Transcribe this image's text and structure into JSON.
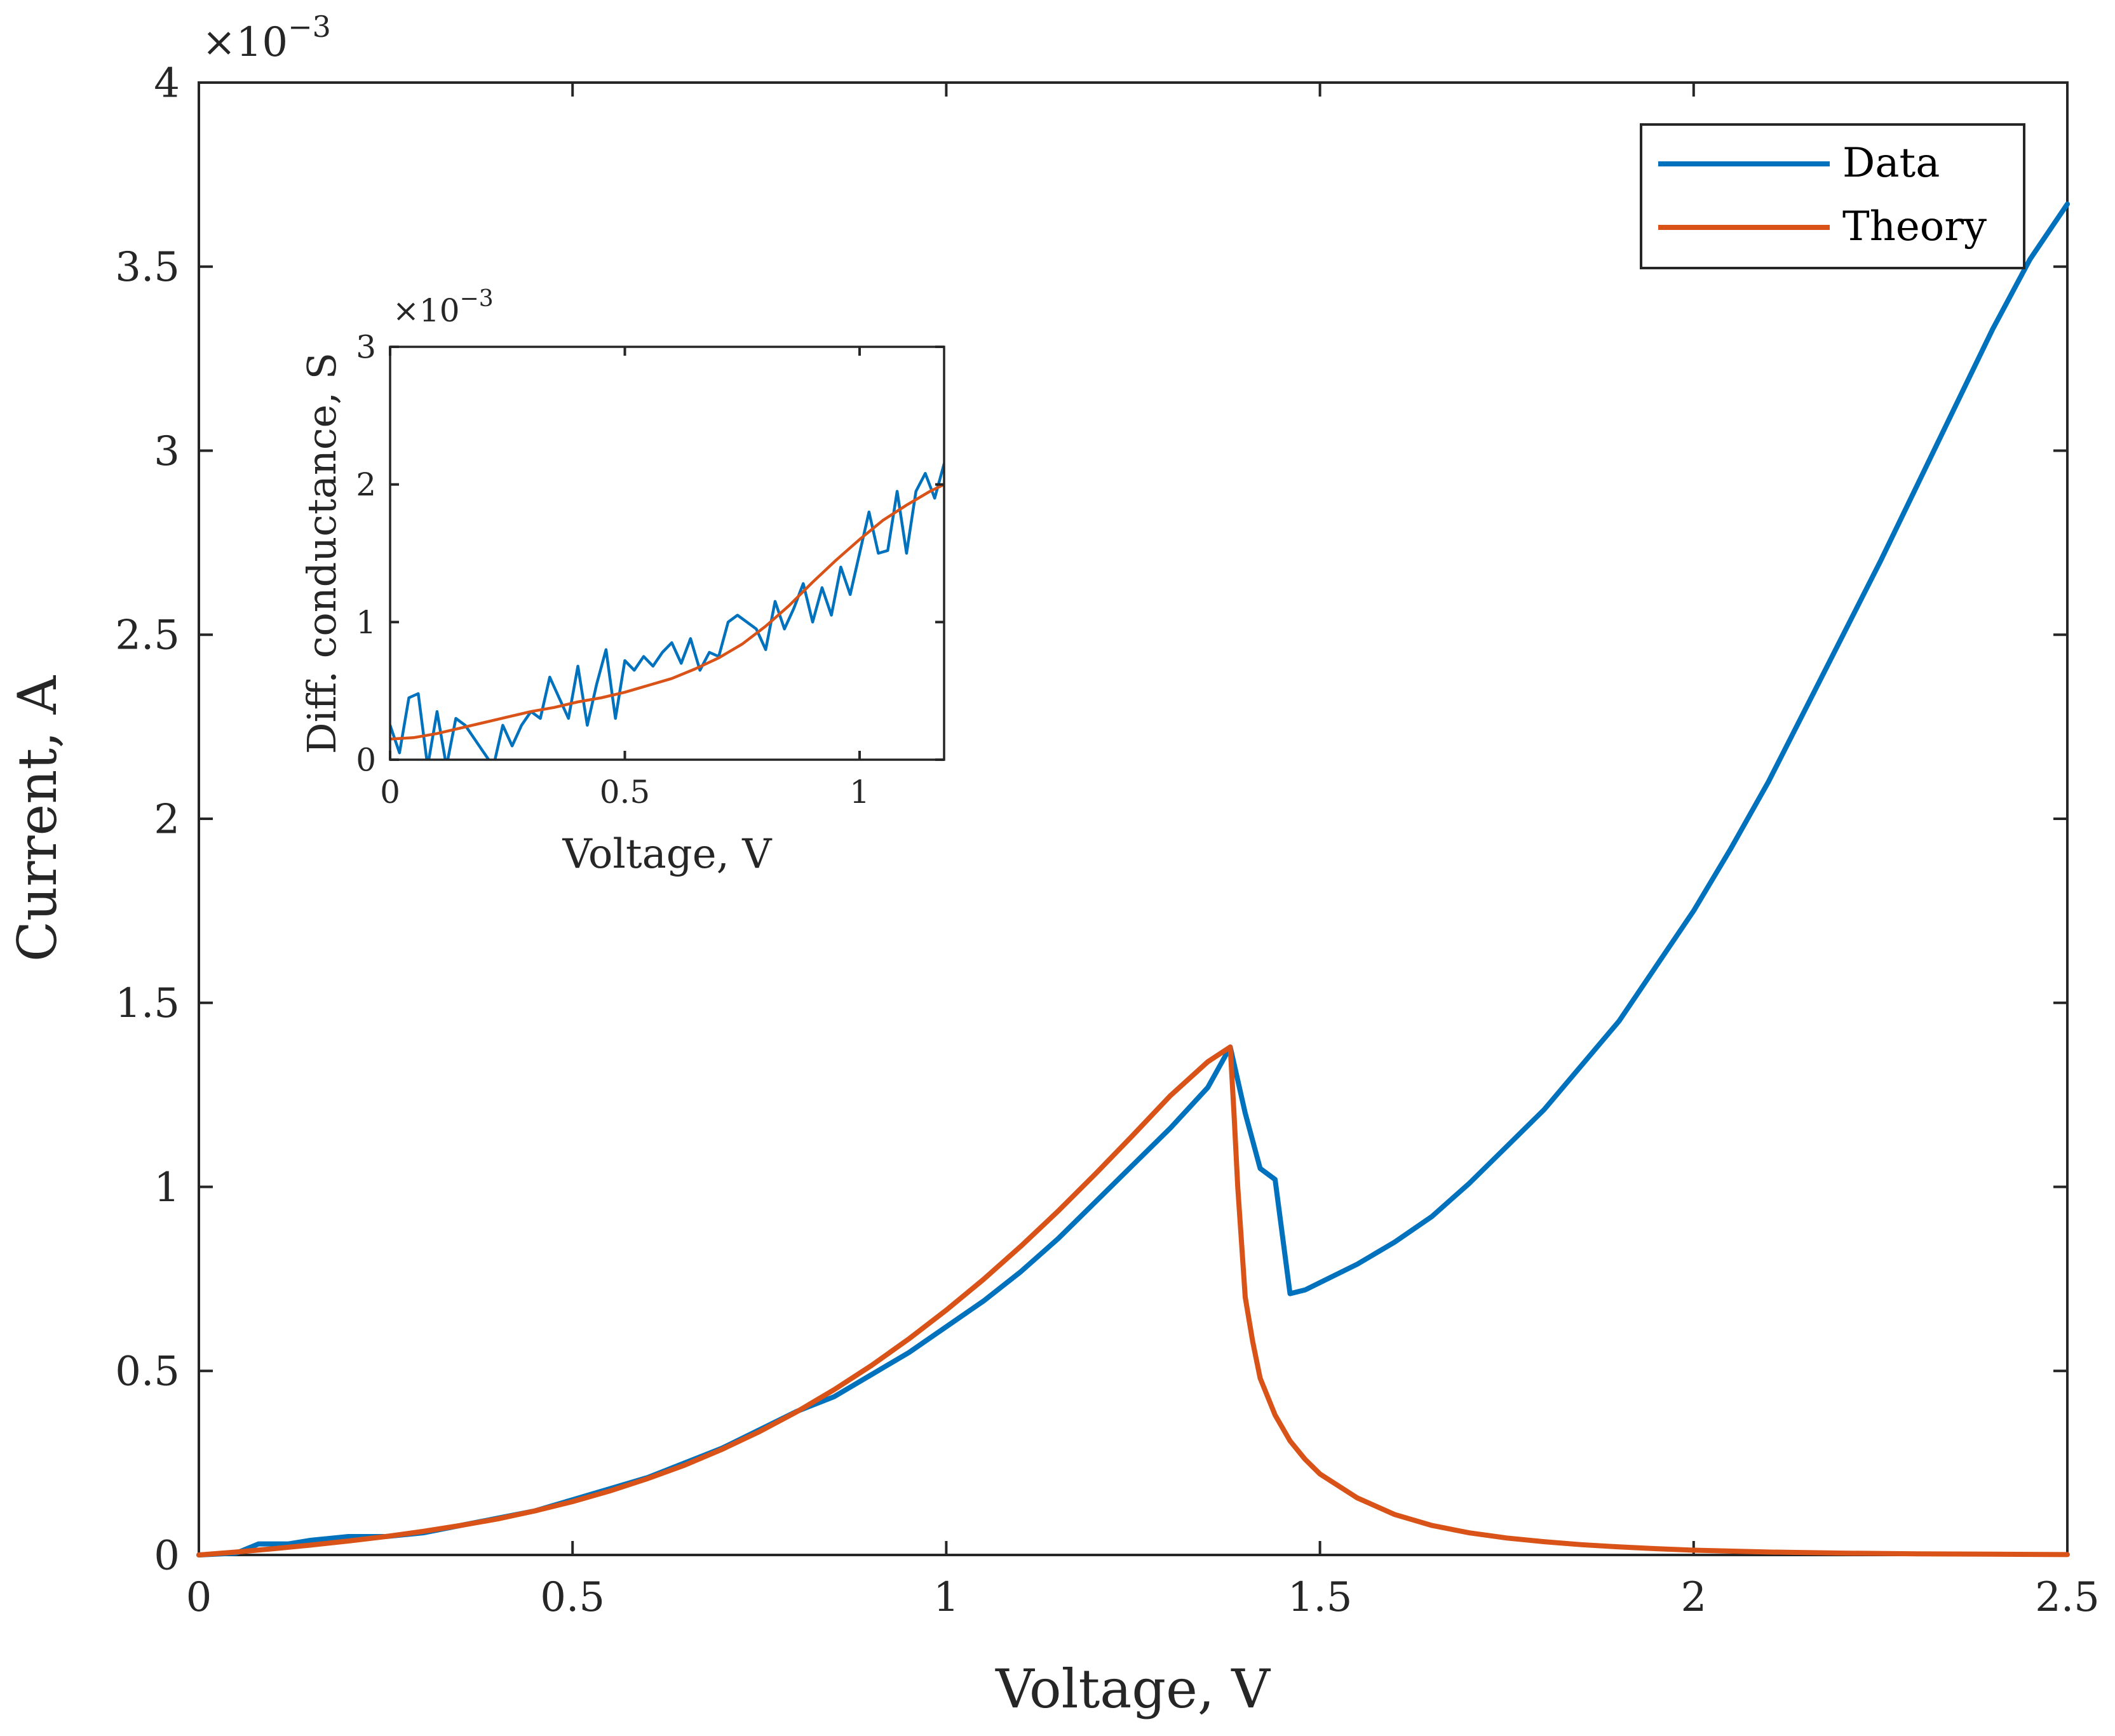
{
  "chart_data": [
    {
      "id": "main",
      "type": "line",
      "title": "",
      "xlabel": "Voltage, V",
      "ylabel": "Current, A",
      "xlim": [
        0,
        2.5
      ],
      "ylim": [
        0,
        4
      ],
      "y_multiplier_label": "×10",
      "y_multiplier_exponent": "−3",
      "xticks": [
        0,
        0.5,
        1,
        1.5,
        2,
        2.5
      ],
      "xtick_labels": [
        "0",
        "0.5",
        "1",
        "1.5",
        "2",
        "2.5"
      ],
      "yticks": [
        0,
        0.5,
        1,
        1.5,
        2,
        2.5,
        3,
        3.5,
        4
      ],
      "ytick_labels": [
        "0",
        "0.5",
        "1",
        "1.5",
        "2",
        "2.5",
        "3",
        "3.5",
        "4"
      ],
      "grid": false,
      "legend_position": "top-right",
      "series": [
        {
          "name": "Data",
          "color": "#0072BD",
          "x": [
            0,
            0.05,
            0.08,
            0.12,
            0.15,
            0.2,
            0.25,
            0.3,
            0.35,
            0.4,
            0.45,
            0.5,
            0.55,
            0.6,
            0.65,
            0.7,
            0.75,
            0.8,
            0.85,
            0.9,
            0.95,
            1.0,
            1.05,
            1.1,
            1.15,
            1.2,
            1.25,
            1.3,
            1.35,
            1.38,
            1.4,
            1.42,
            1.44,
            1.46,
            1.48,
            1.5,
            1.55,
            1.6,
            1.65,
            1.7,
            1.75,
            1.8,
            1.85,
            1.9,
            1.95,
            2.0,
            2.05,
            2.1,
            2.15,
            2.2,
            2.25,
            2.3,
            2.35,
            2.4,
            2.45,
            2.5
          ],
          "y": [
            0,
            0.005,
            0.03,
            0.03,
            0.04,
            0.05,
            0.05,
            0.06,
            0.08,
            0.1,
            0.12,
            0.15,
            0.18,
            0.21,
            0.25,
            0.29,
            0.34,
            0.39,
            0.43,
            0.49,
            0.55,
            0.62,
            0.69,
            0.77,
            0.86,
            0.96,
            1.06,
            1.16,
            1.27,
            1.38,
            1.2,
            1.05,
            1.02,
            0.71,
            0.72,
            0.74,
            0.79,
            0.85,
            0.92,
            1.01,
            1.11,
            1.21,
            1.33,
            1.45,
            1.6,
            1.75,
            1.92,
            2.1,
            2.3,
            2.5,
            2.7,
            2.91,
            3.12,
            3.33,
            3.52,
            3.67
          ]
        },
        {
          "name": "Theory",
          "color": "#D95319",
          "x": [
            0,
            0.05,
            0.1,
            0.15,
            0.2,
            0.25,
            0.3,
            0.35,
            0.4,
            0.45,
            0.5,
            0.55,
            0.6,
            0.65,
            0.7,
            0.75,
            0.8,
            0.85,
            0.9,
            0.95,
            1.0,
            1.05,
            1.1,
            1.15,
            1.2,
            1.25,
            1.3,
            1.35,
            1.38,
            1.385,
            1.39,
            1.4,
            1.41,
            1.42,
            1.44,
            1.46,
            1.48,
            1.5,
            1.55,
            1.6,
            1.65,
            1.7,
            1.75,
            1.8,
            1.85,
            1.9,
            1.95,
            2.0,
            2.1,
            2.2,
            2.3,
            2.4,
            2.5
          ],
          "y": [
            0,
            0.008,
            0.017,
            0.027,
            0.038,
            0.05,
            0.064,
            0.08,
            0.098,
            0.12,
            0.145,
            0.174,
            0.207,
            0.244,
            0.287,
            0.335,
            0.389,
            0.449,
            0.515,
            0.587,
            0.665,
            0.749,
            0.839,
            0.935,
            1.036,
            1.141,
            1.248,
            1.34,
            1.38,
            1.2,
            1.0,
            0.7,
            0.58,
            0.48,
            0.38,
            0.31,
            0.26,
            0.22,
            0.155,
            0.11,
            0.08,
            0.06,
            0.046,
            0.036,
            0.028,
            0.022,
            0.017,
            0.013,
            0.008,
            0.005,
            0.003,
            0.002,
            0.001
          ]
        }
      ]
    },
    {
      "id": "inset",
      "type": "line",
      "title": "",
      "xlabel": "Voltage, V",
      "ylabel": "Diff. conductance, S",
      "xlim": [
        0,
        1.18
      ],
      "ylim": [
        0,
        3
      ],
      "y_multiplier_label": "×10",
      "y_multiplier_exponent": "−3",
      "xticks": [
        0,
        0.5,
        1
      ],
      "xtick_labels": [
        "0",
        "0.5",
        "1"
      ],
      "yticks": [
        0,
        1,
        2,
        3
      ],
      "ytick_labels": [
        "0",
        "1",
        "2",
        "3"
      ],
      "grid": false,
      "series": [
        {
          "name": "Data",
          "color": "#0072BD",
          "x": [
            0,
            0.02,
            0.04,
            0.06,
            0.08,
            0.1,
            0.12,
            0.14,
            0.16,
            0.18,
            0.2,
            0.22,
            0.24,
            0.26,
            0.28,
            0.3,
            0.32,
            0.34,
            0.36,
            0.38,
            0.4,
            0.42,
            0.44,
            0.46,
            0.48,
            0.5,
            0.52,
            0.54,
            0.56,
            0.58,
            0.6,
            0.62,
            0.64,
            0.66,
            0.68,
            0.7,
            0.72,
            0.74,
            0.76,
            0.78,
            0.8,
            0.82,
            0.84,
            0.86,
            0.88,
            0.9,
            0.92,
            0.94,
            0.96,
            0.98,
            1.0,
            1.02,
            1.04,
            1.06,
            1.08,
            1.1,
            1.12,
            1.14,
            1.16,
            1.18
          ],
          "y": [
            0.25,
            0.05,
            0.45,
            0.48,
            -0.05,
            0.35,
            -0.05,
            0.3,
            0.25,
            0.15,
            0.05,
            -0.05,
            0.25,
            0.1,
            0.25,
            0.35,
            0.3,
            0.6,
            0.45,
            0.3,
            0.68,
            0.25,
            0.55,
            0.8,
            0.3,
            0.72,
            0.65,
            0.75,
            0.68,
            0.78,
            0.85,
            0.7,
            0.88,
            0.65,
            0.78,
            0.75,
            1.0,
            1.05,
            1.0,
            0.95,
            0.8,
            1.15,
            0.95,
            1.1,
            1.28,
            1.0,
            1.25,
            1.05,
            1.4,
            1.2,
            1.5,
            1.8,
            1.5,
            1.52,
            1.95,
            1.5,
            1.95,
            2.08,
            1.9,
            2.15
          ]
        },
        {
          "name": "Theory",
          "color": "#D95319",
          "x": [
            0,
            0.05,
            0.1,
            0.15,
            0.2,
            0.25,
            0.3,
            0.35,
            0.4,
            0.45,
            0.5,
            0.55,
            0.6,
            0.65,
            0.7,
            0.75,
            0.8,
            0.85,
            0.9,
            0.95,
            1.0,
            1.05,
            1.1,
            1.15,
            1.18
          ],
          "y": [
            0.15,
            0.16,
            0.19,
            0.23,
            0.27,
            0.31,
            0.35,
            0.38,
            0.42,
            0.45,
            0.49,
            0.54,
            0.59,
            0.66,
            0.74,
            0.84,
            0.97,
            1.12,
            1.29,
            1.45,
            1.6,
            1.74,
            1.85,
            1.95,
            2.0
          ]
        }
      ]
    }
  ]
}
